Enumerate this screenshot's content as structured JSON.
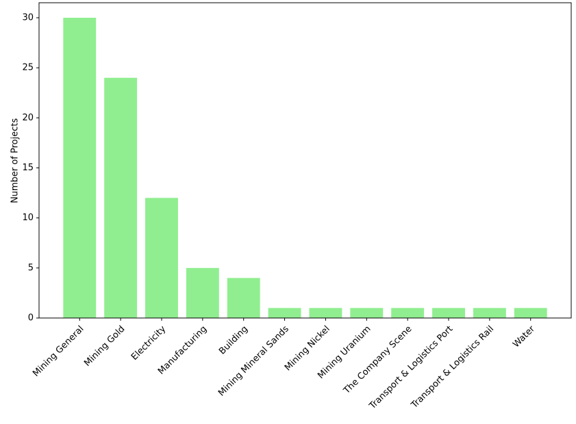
{
  "chart_data": {
    "type": "bar",
    "y_label": "Number of Projects",
    "categories": [
      "Mining General",
      "Mining Gold",
      "Electricity",
      "Manufacturing",
      "Building",
      "Mining Mineral Sands",
      "Mining Nickel",
      "Mining Uranium",
      "The Company Scene",
      "Transport & Logistics Port",
      "Transport & Logistics Rail",
      "Water"
    ],
    "values": [
      30,
      24,
      12,
      5,
      4,
      1,
      1,
      1,
      1,
      1,
      1,
      1
    ],
    "color": "#90ee90",
    "ylim": [
      0,
      31.5
    ],
    "yticks": [
      0,
      5,
      10,
      15,
      20,
      25,
      30
    ],
    "grid": false
  }
}
